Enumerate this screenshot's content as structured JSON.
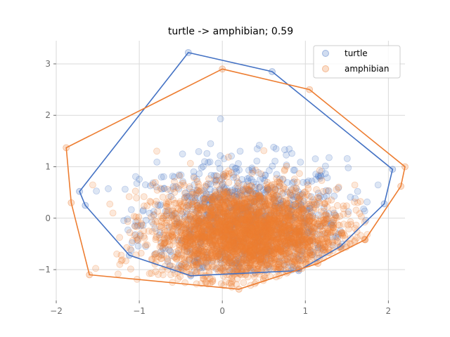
{
  "chart_data": {
    "type": "scatter",
    "title": "turtle -> amphibian; 0.59",
    "xlabel": "",
    "ylabel": "",
    "xlim": [
      -2.0,
      2.2
    ],
    "ylim": [
      -1.6,
      3.45
    ],
    "xticks": [
      -2,
      -1,
      0,
      1,
      2
    ],
    "yticks": [
      -1,
      0,
      1,
      2,
      3
    ],
    "xtick_labels": [
      "−2",
      "−1",
      "0",
      "1",
      "2"
    ],
    "ytick_labels": [
      "−1",
      "0",
      "1",
      "2",
      "3"
    ],
    "grid": true,
    "legend_position": "top-right",
    "series": [
      {
        "name": "turtle",
        "color": "#4472c4",
        "point_count": 900,
        "center": [
          0.25,
          -0.1
        ],
        "spread": [
          0.62,
          0.62
        ],
        "hull": [
          [
            -0.41,
            3.22
          ],
          [
            0.6,
            2.85
          ],
          [
            2.05,
            0.95
          ],
          [
            1.95,
            0.28
          ],
          [
            1.42,
            -0.55
          ],
          [
            0.92,
            -1.02
          ],
          [
            -0.38,
            -1.12
          ],
          [
            -1.12,
            -0.72
          ],
          [
            -1.65,
            0.25
          ],
          [
            -1.72,
            0.52
          ]
        ]
      },
      {
        "name": "amphibian",
        "color": "#ed7d31",
        "point_count": 3000,
        "center": [
          0.3,
          -0.3
        ],
        "spread": [
          0.55,
          0.45
        ],
        "hull": [
          [
            0.0,
            2.9
          ],
          [
            1.05,
            2.5
          ],
          [
            2.2,
            1.0
          ],
          [
            2.15,
            0.62
          ],
          [
            1.72,
            -0.42
          ],
          [
            1.15,
            -0.88
          ],
          [
            0.2,
            -1.38
          ],
          [
            -1.6,
            -1.1
          ],
          [
            -1.82,
            0.3
          ],
          [
            -1.88,
            1.37
          ]
        ]
      }
    ]
  }
}
